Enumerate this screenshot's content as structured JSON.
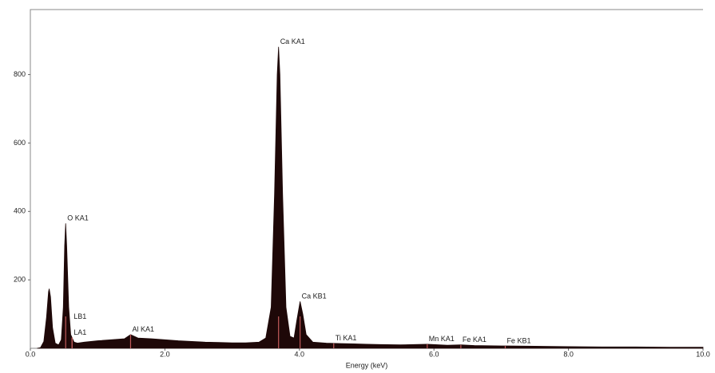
{
  "chart_data": {
    "type": "spectrum",
    "x_label": "Energy (keV)",
    "xlim": [
      0,
      10
    ],
    "ylim": [
      0,
      990
    ],
    "xticks": [
      {
        "value": 0,
        "label": "0.0"
      },
      {
        "value": 2,
        "label": "2.0"
      },
      {
        "value": 4,
        "label": "4.0"
      },
      {
        "value": 6,
        "label": "6.0"
      },
      {
        "value": 8,
        "label": "8.0"
      },
      {
        "value": 10,
        "label": "10.0"
      }
    ],
    "yticks": [
      200,
      400,
      600,
      800
    ],
    "color": "#1e0808",
    "line_color": "#c25a5a",
    "x": [
      0.1,
      0.15,
      0.2,
      0.24,
      0.27,
      0.28,
      0.3,
      0.33,
      0.37,
      0.42,
      0.46,
      0.49,
      0.51,
      0.525,
      0.54,
      0.57,
      0.6,
      0.65,
      0.7,
      0.8,
      0.9,
      1.0,
      1.2,
      1.4,
      1.49,
      1.6,
      1.8,
      2.0,
      2.2,
      2.4,
      2.6,
      2.8,
      3.0,
      3.2,
      3.4,
      3.5,
      3.58,
      3.63,
      3.67,
      3.69,
      3.71,
      3.75,
      3.8,
      3.86,
      3.92,
      3.96,
      4.01,
      4.05,
      4.1,
      4.2,
      4.4,
      4.6,
      4.8,
      5.0,
      5.2,
      5.5,
      5.9,
      6.2,
      6.4,
      6.6,
      7.0,
      7.5,
      8.0,
      8.5,
      9.0,
      9.5,
      10.0
    ],
    "values": [
      0,
      2,
      20,
      90,
      165,
      174,
      150,
      60,
      15,
      10,
      25,
      120,
      300,
      365,
      300,
      120,
      40,
      18,
      15,
      18,
      20,
      22,
      25,
      28,
      40,
      30,
      28,
      25,
      22,
      20,
      18,
      17,
      16,
      16,
      18,
      30,
      120,
      450,
      800,
      881,
      800,
      450,
      120,
      35,
      30,
      80,
      137,
      100,
      40,
      18,
      15,
      14,
      13,
      12,
      11,
      10,
      12,
      9,
      10,
      8,
      7,
      6,
      5,
      4,
      4,
      3,
      3
    ],
    "annotations": [
      {
        "text": "O  KA1",
        "x": 0.525
      },
      {
        "text": "LA1",
        "x": 0.62
      },
      {
        "text": "LB1",
        "x": 0.62
      },
      {
        "text": "Al KA1",
        "x": 1.49
      },
      {
        "text": "Ca KA1",
        "x": 3.69
      },
      {
        "text": "Ca KB1",
        "x": 4.01
      },
      {
        "text": "Ti KA1",
        "x": 4.51
      },
      {
        "text": "Mn KA1",
        "x": 5.9
      },
      {
        "text": "Fe KA1",
        "x": 6.4
      },
      {
        "text": "Fe KB1",
        "x": 7.06
      }
    ]
  }
}
